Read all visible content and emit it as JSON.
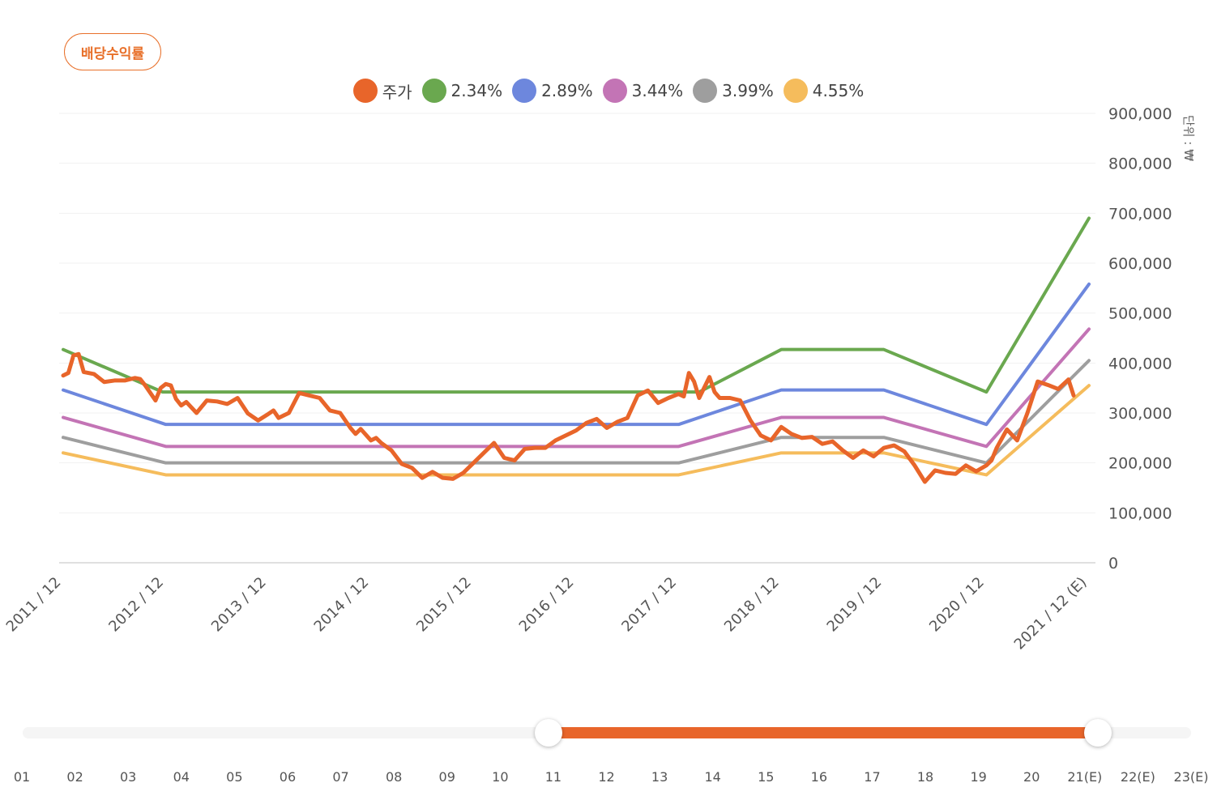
{
  "badge_label": "배당수익률",
  "unit_label": "단위 : ₩",
  "legend": [
    {
      "label": "주가",
      "color": "#e8652a"
    },
    {
      "label": "2.34%",
      "color": "#6aa84f"
    },
    {
      "label": "2.89%",
      "color": "#6d87dd"
    },
    {
      "label": "3.44%",
      "color": "#c374b5"
    },
    {
      "label": "3.99%",
      "color": "#9e9e9e"
    },
    {
      "label": "4.55%",
      "color": "#f5bc5c"
    }
  ],
  "chart_data": {
    "type": "line",
    "ylim": [
      0,
      900000
    ],
    "yticks": [
      "0",
      "100,000",
      "200,000",
      "300,000",
      "400,000",
      "500,000",
      "600,000",
      "700,000",
      "800,000",
      "900,000"
    ],
    "xticks": [
      "2011 / 12",
      "2012 / 12",
      "2013 / 12",
      "2014 / 12",
      "2015 / 12",
      "2016 / 12",
      "2017 / 12",
      "2018 / 12",
      "2019 / 12",
      "2020 / 12",
      "2021 / 12 (E)"
    ],
    "bands": [
      {
        "name": "2.34%",
        "color": "#6aa84f",
        "x": [
          0,
          0.97,
          1,
          6,
          6.2,
          7,
          8,
          9,
          10
        ],
        "values": [
          427000,
          342000,
          342000,
          342000,
          342000,
          427000,
          427000,
          342000,
          690000
        ]
      },
      {
        "name": "2.89%",
        "color": "#6d87dd",
        "x": [
          0,
          1,
          6,
          7,
          8,
          9,
          10
        ],
        "values": [
          346000,
          277000,
          277000,
          346000,
          346000,
          277000,
          558000
        ]
      },
      {
        "name": "3.44%",
        "color": "#c374b5",
        "x": [
          0,
          1,
          6,
          7,
          8,
          9,
          10
        ],
        "values": [
          291000,
          233000,
          233000,
          291000,
          291000,
          233000,
          468000
        ]
      },
      {
        "name": "3.99%",
        "color": "#9e9e9e",
        "x": [
          0,
          1,
          6,
          7,
          8,
          9,
          10
        ],
        "values": [
          251000,
          200000,
          200000,
          251000,
          251000,
          200000,
          405000
        ]
      },
      {
        "name": "4.55%",
        "color": "#f5bc5c",
        "x": [
          0,
          1,
          6,
          7,
          8,
          9,
          10
        ],
        "values": [
          220000,
          176000,
          176000,
          220000,
          220000,
          176000,
          355000
        ]
      }
    ],
    "price": {
      "name": "주가",
      "color": "#e8652a",
      "x": [
        0,
        0.05,
        0.1,
        0.15,
        0.2,
        0.3,
        0.4,
        0.5,
        0.6,
        0.7,
        0.75,
        0.8,
        0.9,
        0.95,
        1.0,
        1.05,
        1.1,
        1.15,
        1.2,
        1.3,
        1.4,
        1.45,
        1.5,
        1.6,
        1.7,
        1.8,
        1.9,
        2.0,
        2.05,
        2.1,
        2.2,
        2.3,
        2.4,
        2.5,
        2.6,
        2.7,
        2.8,
        2.85,
        2.9,
        3.0,
        3.05,
        3.1,
        3.2,
        3.3,
        3.4,
        3.5,
        3.6,
        3.7,
        3.8,
        3.9,
        4.0,
        4.1,
        4.2,
        4.3,
        4.4,
        4.5,
        4.6,
        4.7,
        4.8,
        4.9,
        5.0,
        5.1,
        5.2,
        5.3,
        5.4,
        5.5,
        5.6,
        5.7,
        5.8,
        5.9,
        6.0,
        6.05,
        6.1,
        6.15,
        6.2,
        6.3,
        6.35,
        6.4,
        6.5,
        6.6,
        6.7,
        6.8,
        6.9,
        7.0,
        7.1,
        7.2,
        7.3,
        7.4,
        7.5,
        7.6,
        7.7,
        7.8,
        7.9,
        8.0,
        8.1,
        8.2,
        8.3,
        8.4,
        8.5,
        8.6,
        8.7,
        8.8,
        8.9,
        9.0,
        9.05,
        9.1,
        9.2,
        9.3,
        9.4,
        9.5,
        9.6,
        9.7,
        9.8,
        9.85
      ],
      "values": [
        375000,
        380000,
        415000,
        418000,
        382000,
        378000,
        362000,
        365000,
        365000,
        370000,
        368000,
        355000,
        325000,
        350000,
        358000,
        355000,
        328000,
        315000,
        322000,
        300000,
        325000,
        324000,
        323000,
        318000,
        330000,
        299000,
        285000,
        298000,
        305000,
        290000,
        300000,
        340000,
        335000,
        330000,
        305000,
        300000,
        270000,
        258000,
        268000,
        245000,
        250000,
        240000,
        225000,
        198000,
        190000,
        170000,
        182000,
        170000,
        168000,
        180000,
        200000,
        220000,
        240000,
        210000,
        205000,
        228000,
        230000,
        230000,
        245000,
        255000,
        265000,
        280000,
        288000,
        270000,
        282000,
        290000,
        335000,
        345000,
        320000,
        330000,
        338000,
        333000,
        380000,
        363000,
        330000,
        372000,
        342000,
        330000,
        330000,
        325000,
        285000,
        255000,
        245000,
        272000,
        258000,
        250000,
        252000,
        238000,
        243000,
        225000,
        210000,
        225000,
        213000,
        230000,
        235000,
        223000,
        195000,
        162000,
        185000,
        180000,
        178000,
        195000,
        183000,
        195000,
        205000,
        230000,
        267000,
        245000,
        300000,
        363000,
        356000,
        348000,
        367000,
        335000
      ]
    }
  },
  "slider": {
    "labels": [
      "01",
      "02",
      "03",
      "04",
      "05",
      "06",
      "07",
      "08",
      "09",
      "10",
      "11",
      "12",
      "13",
      "14",
      "15",
      "16",
      "17",
      "18",
      "19",
      "20",
      "21(E)",
      "22(E)",
      "23(E)"
    ],
    "range": [
      0.45,
      0.92
    ]
  }
}
